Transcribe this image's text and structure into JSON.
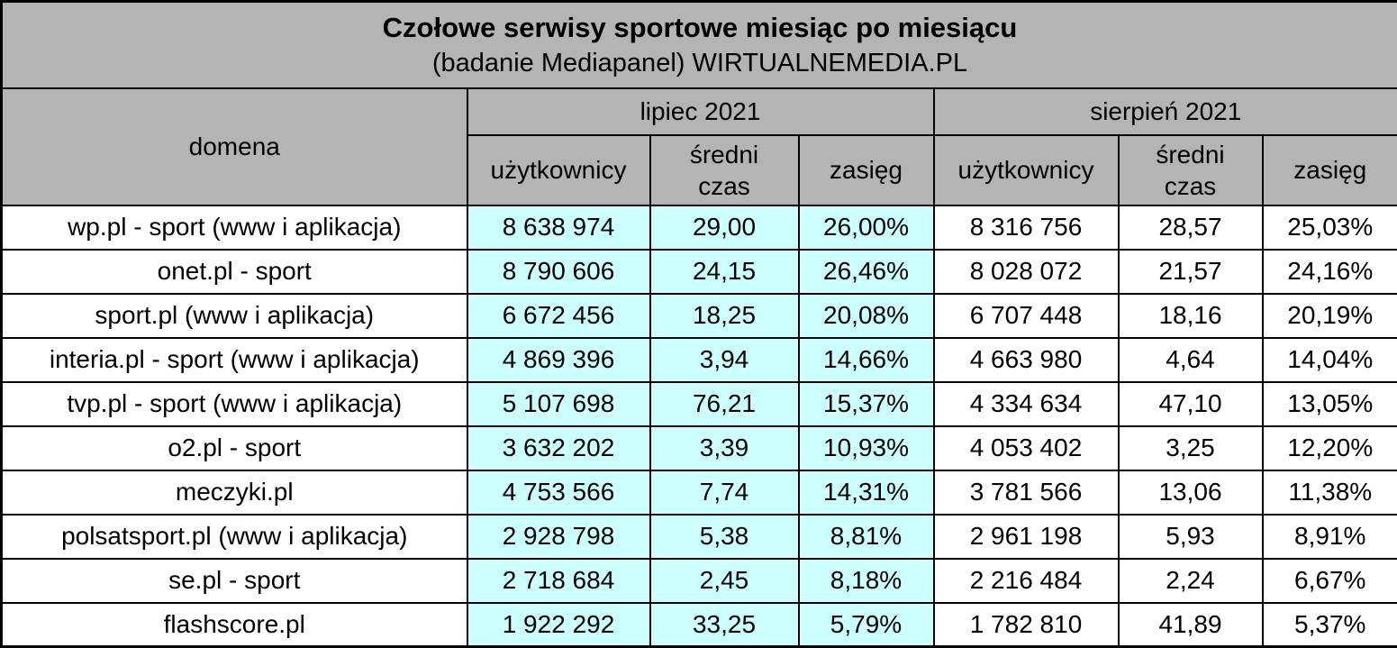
{
  "title": "Czołowe serwisy sportowe miesiąc po miesiącu",
  "subtitle": "(badanie Mediapanel) WIRTUALNEMEDIA.PL",
  "columns": {
    "domain": "domena",
    "groups": [
      {
        "label": "lipiec 2021"
      },
      {
        "label": "sierpień 2021"
      }
    ],
    "metrics": [
      "użytkownicy",
      "średni\nczas",
      "zasięg"
    ]
  },
  "colors": {
    "header_gray": "#b4b4b4",
    "july_highlight": "#ccffff",
    "border": "#000000"
  },
  "chart_data": {
    "type": "table",
    "title": "Czołowe serwisy sportowe miesiąc po miesiącu",
    "subtitle": "(badanie Mediapanel) WIRTUALNEMEDIA.PL",
    "column_groups": [
      "lipiec 2021",
      "sierpień 2021"
    ],
    "metric_columns": [
      "użytkownicy",
      "średni czas",
      "zasięg"
    ],
    "rows": [
      {
        "domena": "wp.pl - sport (www i aplikacja)",
        "lipiec": {
          "uzytkownicy": "8 638 974",
          "sredni_czas": "29,00",
          "zasieg": "26,00%"
        },
        "sierpien": {
          "uzytkownicy": "8 316 756",
          "sredni_czas": "28,57",
          "zasieg": "25,03%"
        }
      },
      {
        "domena": "onet.pl - sport",
        "lipiec": {
          "uzytkownicy": "8 790 606",
          "sredni_czas": "24,15",
          "zasieg": "26,46%"
        },
        "sierpien": {
          "uzytkownicy": "8 028 072",
          "sredni_czas": "21,57",
          "zasieg": "24,16%"
        }
      },
      {
        "domena": "sport.pl (www i aplikacja)",
        "lipiec": {
          "uzytkownicy": "6 672 456",
          "sredni_czas": "18,25",
          "zasieg": "20,08%"
        },
        "sierpien": {
          "uzytkownicy": "6 707 448",
          "sredni_czas": "18,16",
          "zasieg": "20,19%"
        }
      },
      {
        "domena": "interia.pl - sport (www i aplikacja)",
        "lipiec": {
          "uzytkownicy": "4 869 396",
          "sredni_czas": "3,94",
          "zasieg": "14,66%"
        },
        "sierpien": {
          "uzytkownicy": "4 663 980",
          "sredni_czas": "4,64",
          "zasieg": "14,04%"
        }
      },
      {
        "domena": "tvp.pl - sport (www i aplikacja)",
        "lipiec": {
          "uzytkownicy": "5 107 698",
          "sredni_czas": "76,21",
          "zasieg": "15,37%"
        },
        "sierpien": {
          "uzytkownicy": "4 334 634",
          "sredni_czas": "47,10",
          "zasieg": "13,05%"
        }
      },
      {
        "domena": "o2.pl - sport",
        "lipiec": {
          "uzytkownicy": "3 632 202",
          "sredni_czas": "3,39",
          "zasieg": "10,93%"
        },
        "sierpien": {
          "uzytkownicy": "4 053 402",
          "sredni_czas": "3,25",
          "zasieg": "12,20%"
        }
      },
      {
        "domena": "meczyki.pl",
        "lipiec": {
          "uzytkownicy": "4 753 566",
          "sredni_czas": "7,74",
          "zasieg": "14,31%"
        },
        "sierpien": {
          "uzytkownicy": "3 781 566",
          "sredni_czas": "13,06",
          "zasieg": "11,38%"
        }
      },
      {
        "domena": "polsatsport.pl (www i aplikacja)",
        "lipiec": {
          "uzytkownicy": "2 928 798",
          "sredni_czas": "5,38",
          "zasieg": "8,81%"
        },
        "sierpien": {
          "uzytkownicy": "2 961 198",
          "sredni_czas": "5,93",
          "zasieg": "8,91%"
        }
      },
      {
        "domena": "se.pl - sport",
        "lipiec": {
          "uzytkownicy": "2 718 684",
          "sredni_czas": "2,45",
          "zasieg": "8,18%"
        },
        "sierpien": {
          "uzytkownicy": "2 216 484",
          "sredni_czas": "2,24",
          "zasieg": "6,67%"
        }
      },
      {
        "domena": "flashscore.pl",
        "lipiec": {
          "uzytkownicy": "1 922 292",
          "sredni_czas": "33,25",
          "zasieg": "5,79%"
        },
        "sierpien": {
          "uzytkownicy": "1 782 810",
          "sredni_czas": "41,89",
          "zasieg": "5,37%"
        }
      }
    ]
  }
}
